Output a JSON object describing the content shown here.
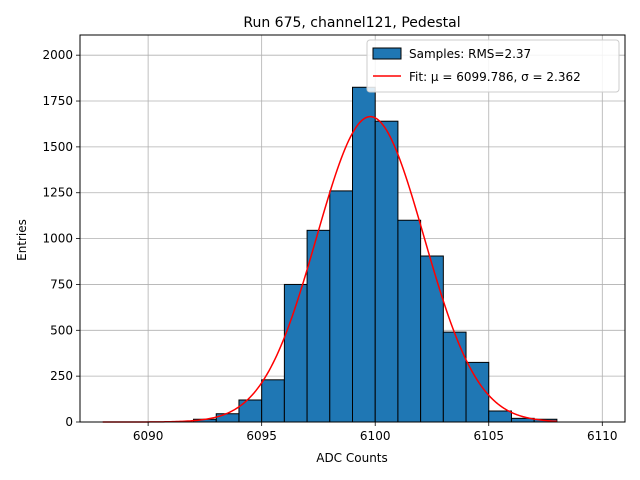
{
  "chart_data": {
    "type": "bar",
    "title": "Run 675, channel121, Pedestal",
    "xlabel": "ADC Counts",
    "ylabel": "Entries",
    "xlim": [
      6087.0,
      6111.0
    ],
    "ylim": [
      0,
      2110
    ],
    "xticks": [
      6090,
      6095,
      6100,
      6105,
      6110
    ],
    "yticks": [
      0,
      250,
      500,
      750,
      1000,
      1250,
      1500,
      1750,
      2000
    ],
    "grid": true,
    "legend_position": "top-right",
    "series": [
      {
        "name": "Samples: RMS=2.37",
        "kind": "histogram",
        "color": "#1f77b4",
        "edgecolor": "#000000",
        "bin_edges": [
          6088,
          6089,
          6090,
          6091,
          6092,
          6093,
          6094,
          6095,
          6096,
          6097,
          6098,
          6099,
          6100,
          6101,
          6102,
          6103,
          6104,
          6105,
          6106,
          6107,
          6108
        ],
        "counts": [
          0,
          0,
          0,
          0,
          15,
          45,
          120,
          230,
          750,
          1045,
          1260,
          1825,
          1640,
          1100,
          905,
          490,
          325,
          60,
          20,
          15
        ]
      },
      {
        "name": "Fit: μ = 6099.786, σ = 2.362",
        "kind": "gaussian",
        "color": "#ff0000",
        "mu": 6099.786,
        "sigma": 2.362,
        "amplitude": 1665,
        "x_range": [
          6088,
          6108
        ]
      }
    ]
  }
}
